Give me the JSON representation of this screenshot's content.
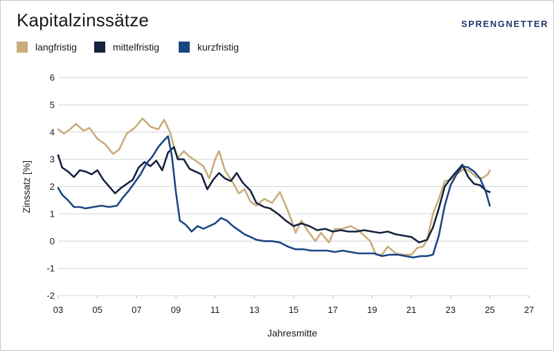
{
  "title": "Kapitalzinssätze",
  "brand": {
    "logo_text": "SPRENGNETTER",
    "color": "#1c3a6b"
  },
  "chart_data": {
    "type": "line",
    "title": "Kapitalzinssätze",
    "xlabel": "Jahresmitte",
    "ylabel": "Zinssatz [%]",
    "xlim": [
      2003,
      2027
    ],
    "ylim": [
      -2,
      6
    ],
    "x_ticks": [
      "03",
      "05",
      "07",
      "09",
      "11",
      "13",
      "15",
      "17",
      "19",
      "21",
      "23",
      "25",
      "27"
    ],
    "y_ticks": [
      "-2",
      "-1",
      "0",
      "1",
      "2",
      "3",
      "4",
      "5",
      "6"
    ],
    "grid": "horizontal",
    "legend_position": "top-left",
    "series": [
      {
        "name": "langfristig",
        "color": "#c8ad7b",
        "points": [
          [
            2003.0,
            4.1
          ],
          [
            2003.3,
            3.95
          ],
          [
            2003.6,
            4.1
          ],
          [
            2003.9,
            4.3
          ],
          [
            2004.3,
            4.05
          ],
          [
            2004.6,
            4.15
          ],
          [
            2005.0,
            3.75
          ],
          [
            2005.4,
            3.55
          ],
          [
            2005.8,
            3.2
          ],
          [
            2006.1,
            3.35
          ],
          [
            2006.5,
            3.95
          ],
          [
            2006.9,
            4.15
          ],
          [
            2007.3,
            4.5
          ],
          [
            2007.7,
            4.2
          ],
          [
            2008.1,
            4.1
          ],
          [
            2008.4,
            4.45
          ],
          [
            2008.7,
            4.0
          ],
          [
            2008.9,
            3.45
          ],
          [
            2009.1,
            3.05
          ],
          [
            2009.4,
            3.3
          ],
          [
            2009.7,
            3.1
          ],
          [
            2010.0,
            2.95
          ],
          [
            2010.4,
            2.75
          ],
          [
            2010.7,
            2.3
          ],
          [
            2011.0,
            3.0
          ],
          [
            2011.2,
            3.3
          ],
          [
            2011.5,
            2.6
          ],
          [
            2011.9,
            2.15
          ],
          [
            2012.2,
            1.75
          ],
          [
            2012.5,
            1.9
          ],
          [
            2012.8,
            1.45
          ],
          [
            2013.1,
            1.3
          ],
          [
            2013.5,
            1.55
          ],
          [
            2013.9,
            1.4
          ],
          [
            2014.3,
            1.8
          ],
          [
            2014.6,
            1.3
          ],
          [
            2014.9,
            0.75
          ],
          [
            2015.1,
            0.3
          ],
          [
            2015.4,
            0.75
          ],
          [
            2015.7,
            0.4
          ],
          [
            2016.1,
            0.0
          ],
          [
            2016.4,
            0.3
          ],
          [
            2016.8,
            -0.05
          ],
          [
            2017.1,
            0.45
          ],
          [
            2017.5,
            0.45
          ],
          [
            2017.9,
            0.55
          ],
          [
            2018.3,
            0.4
          ],
          [
            2018.6,
            0.2
          ],
          [
            2018.9,
            0.0
          ],
          [
            2019.2,
            -0.5
          ],
          [
            2019.5,
            -0.5
          ],
          [
            2019.8,
            -0.2
          ],
          [
            2020.2,
            -0.45
          ],
          [
            2020.6,
            -0.5
          ],
          [
            2021.0,
            -0.5
          ],
          [
            2021.3,
            -0.25
          ],
          [
            2021.6,
            -0.2
          ],
          [
            2021.8,
            0.05
          ],
          [
            2022.1,
            1.0
          ],
          [
            2022.4,
            1.55
          ],
          [
            2022.7,
            2.2
          ],
          [
            2023.0,
            2.25
          ],
          [
            2023.4,
            2.5
          ],
          [
            2023.7,
            2.65
          ],
          [
            2024.0,
            2.55
          ],
          [
            2024.3,
            2.35
          ],
          [
            2024.6,
            2.3
          ],
          [
            2024.9,
            2.45
          ],
          [
            2025.0,
            2.6
          ]
        ]
      },
      {
        "name": "mittelfristig",
        "color": "#14223e",
        "points": [
          [
            2003.0,
            3.15
          ],
          [
            2003.2,
            2.7
          ],
          [
            2003.5,
            2.55
          ],
          [
            2003.8,
            2.35
          ],
          [
            2004.1,
            2.6
          ],
          [
            2004.4,
            2.55
          ],
          [
            2004.7,
            2.45
          ],
          [
            2005.0,
            2.6
          ],
          [
            2005.3,
            2.25
          ],
          [
            2005.6,
            2.0
          ],
          [
            2005.9,
            1.75
          ],
          [
            2006.2,
            1.95
          ],
          [
            2006.5,
            2.1
          ],
          [
            2006.8,
            2.25
          ],
          [
            2007.1,
            2.7
          ],
          [
            2007.4,
            2.9
          ],
          [
            2007.7,
            2.75
          ],
          [
            2008.0,
            2.95
          ],
          [
            2008.3,
            2.6
          ],
          [
            2008.6,
            3.25
          ],
          [
            2008.9,
            3.45
          ],
          [
            2009.1,
            3.0
          ],
          [
            2009.4,
            3.0
          ],
          [
            2009.7,
            2.65
          ],
          [
            2010.0,
            2.55
          ],
          [
            2010.3,
            2.45
          ],
          [
            2010.6,
            1.9
          ],
          [
            2010.9,
            2.25
          ],
          [
            2011.2,
            2.5
          ],
          [
            2011.5,
            2.3
          ],
          [
            2011.8,
            2.2
          ],
          [
            2012.1,
            2.5
          ],
          [
            2012.4,
            2.15
          ],
          [
            2012.8,
            1.85
          ],
          [
            2013.1,
            1.4
          ],
          [
            2013.5,
            1.25
          ],
          [
            2013.8,
            1.2
          ],
          [
            2014.2,
            1.0
          ],
          [
            2014.6,
            0.75
          ],
          [
            2015.0,
            0.55
          ],
          [
            2015.4,
            0.65
          ],
          [
            2015.8,
            0.55
          ],
          [
            2016.2,
            0.4
          ],
          [
            2016.6,
            0.45
          ],
          [
            2017.0,
            0.35
          ],
          [
            2017.4,
            0.4
          ],
          [
            2017.8,
            0.35
          ],
          [
            2018.2,
            0.35
          ],
          [
            2018.6,
            0.4
          ],
          [
            2019.0,
            0.35
          ],
          [
            2019.4,
            0.3
          ],
          [
            2019.8,
            0.35
          ],
          [
            2020.2,
            0.25
          ],
          [
            2020.6,
            0.2
          ],
          [
            2021.0,
            0.15
          ],
          [
            2021.4,
            -0.05
          ],
          [
            2021.8,
            0.05
          ],
          [
            2022.1,
            0.5
          ],
          [
            2022.4,
            1.2
          ],
          [
            2022.7,
            2.0
          ],
          [
            2023.0,
            2.3
          ],
          [
            2023.3,
            2.55
          ],
          [
            2023.6,
            2.8
          ],
          [
            2023.9,
            2.35
          ],
          [
            2024.2,
            2.1
          ],
          [
            2024.5,
            2.05
          ],
          [
            2024.8,
            1.85
          ],
          [
            2025.0,
            1.8
          ]
        ]
      },
      {
        "name": "kurzfristig",
        "color": "#1a4585",
        "points": [
          [
            2003.0,
            1.95
          ],
          [
            2003.2,
            1.7
          ],
          [
            2003.5,
            1.5
          ],
          [
            2003.8,
            1.25
          ],
          [
            2004.1,
            1.25
          ],
          [
            2004.4,
            1.2
          ],
          [
            2004.8,
            1.25
          ],
          [
            2005.2,
            1.3
          ],
          [
            2005.6,
            1.25
          ],
          [
            2006.0,
            1.3
          ],
          [
            2006.3,
            1.6
          ],
          [
            2006.6,
            1.85
          ],
          [
            2006.9,
            2.15
          ],
          [
            2007.2,
            2.45
          ],
          [
            2007.5,
            2.85
          ],
          [
            2007.8,
            3.1
          ],
          [
            2008.1,
            3.45
          ],
          [
            2008.4,
            3.7
          ],
          [
            2008.6,
            3.85
          ],
          [
            2008.8,
            3.1
          ],
          [
            2009.0,
            1.8
          ],
          [
            2009.2,
            0.75
          ],
          [
            2009.5,
            0.6
          ],
          [
            2009.8,
            0.35
          ],
          [
            2010.1,
            0.55
          ],
          [
            2010.4,
            0.45
          ],
          [
            2010.7,
            0.55
          ],
          [
            2011.0,
            0.65
          ],
          [
            2011.3,
            0.85
          ],
          [
            2011.6,
            0.75
          ],
          [
            2011.9,
            0.55
          ],
          [
            2012.2,
            0.4
          ],
          [
            2012.5,
            0.25
          ],
          [
            2012.8,
            0.15
          ],
          [
            2013.1,
            0.05
          ],
          [
            2013.5,
            0.0
          ],
          [
            2013.9,
            0.0
          ],
          [
            2014.3,
            -0.05
          ],
          [
            2014.7,
            -0.2
          ],
          [
            2015.1,
            -0.3
          ],
          [
            2015.5,
            -0.3
          ],
          [
            2015.9,
            -0.35
          ],
          [
            2016.3,
            -0.35
          ],
          [
            2016.7,
            -0.35
          ],
          [
            2017.1,
            -0.4
          ],
          [
            2017.5,
            -0.35
          ],
          [
            2017.9,
            -0.4
          ],
          [
            2018.3,
            -0.45
          ],
          [
            2018.7,
            -0.45
          ],
          [
            2019.1,
            -0.45
          ],
          [
            2019.5,
            -0.55
          ],
          [
            2019.9,
            -0.5
          ],
          [
            2020.3,
            -0.5
          ],
          [
            2020.7,
            -0.55
          ],
          [
            2021.1,
            -0.6
          ],
          [
            2021.5,
            -0.55
          ],
          [
            2021.8,
            -0.55
          ],
          [
            2022.1,
            -0.5
          ],
          [
            2022.4,
            0.2
          ],
          [
            2022.7,
            1.3
          ],
          [
            2023.0,
            2.05
          ],
          [
            2023.3,
            2.45
          ],
          [
            2023.6,
            2.75
          ],
          [
            2023.9,
            2.7
          ],
          [
            2024.2,
            2.55
          ],
          [
            2024.5,
            2.3
          ],
          [
            2024.8,
            1.8
          ],
          [
            2025.0,
            1.3
          ]
        ]
      }
    ]
  }
}
